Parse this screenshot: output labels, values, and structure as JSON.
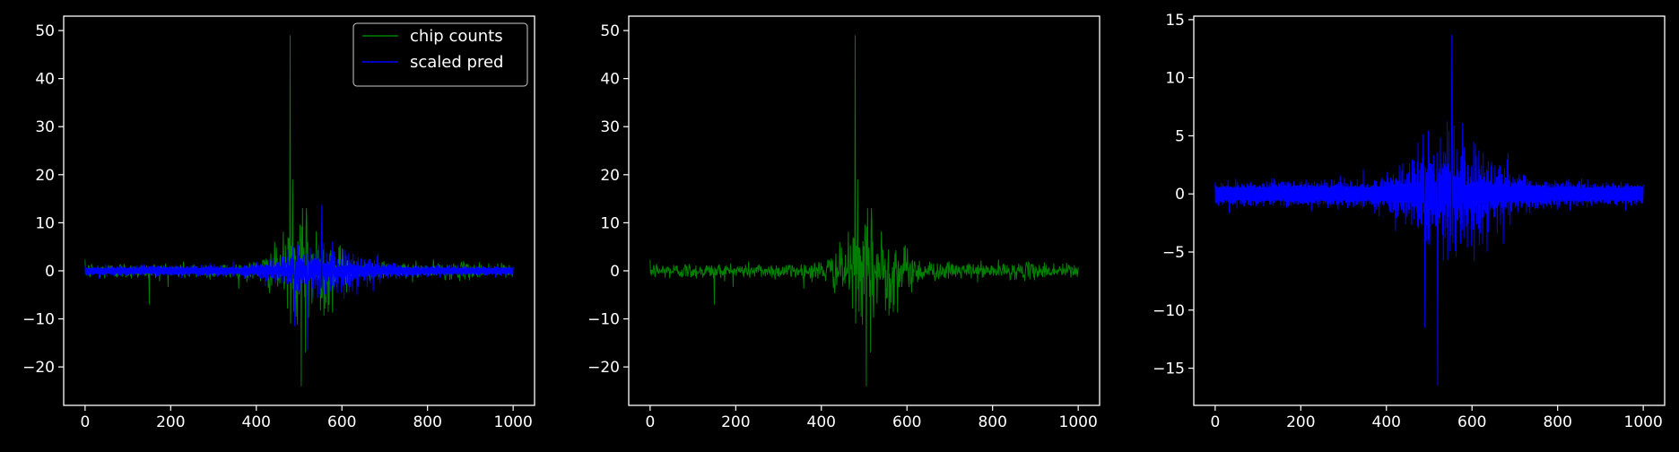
{
  "figure": {
    "background": "#000000",
    "foreground": "#ffffff"
  },
  "chart_data": [
    {
      "type": "line",
      "title": "",
      "xlabel": "",
      "ylabel": "",
      "xlim": [
        -50,
        1050
      ],
      "ylim": [
        -28,
        53
      ],
      "xticks": [
        0,
        200,
        400,
        600,
        800,
        1000
      ],
      "yticks": [
        -20,
        -10,
        0,
        10,
        20,
        30,
        40,
        50
      ],
      "grid": false,
      "legend": {
        "placement": "top-right",
        "entries": [
          {
            "label": "chip counts",
            "color": "#008000"
          },
          {
            "label": "scaled pred",
            "color": "#0000ff"
          }
        ]
      },
      "series": [
        {
          "name": "chip counts",
          "color": "#008000",
          "n_points": 1001,
          "x_range": [
            0,
            1000
          ],
          "pattern": "alternating-sign counts, envelope peaks near x=480-520",
          "notable_points": [
            {
              "x": 479,
              "y": 49
            },
            {
              "x": 485,
              "y": 19
            },
            {
              "x": 505,
              "y": -24
            },
            {
              "x": 515,
              "y": -17
            },
            {
              "x": 150,
              "y": -7
            }
          ],
          "typical_amplitude_edges": 1.2,
          "typical_amplitude_center": 8
        },
        {
          "name": "scaled pred",
          "color": "#0000ff",
          "n_points": 1001,
          "x_range": [
            0,
            1000
          ],
          "pattern": "two bands (positive and negative) with a bulge between x=450 and x=700",
          "notable_points": [
            {
              "x": 553,
              "y": 13.7
            },
            {
              "x": 520,
              "y": -16.5
            },
            {
              "x": 490,
              "y": -11.5
            }
          ],
          "typical_amplitude_edges": 0.6,
          "typical_amplitude_center": 5
        }
      ]
    },
    {
      "type": "line",
      "title": "",
      "xlabel": "",
      "ylabel": "",
      "xlim": [
        -50,
        1050
      ],
      "ylim": [
        -28,
        53
      ],
      "xticks": [
        0,
        200,
        400,
        600,
        800,
        1000
      ],
      "yticks": [
        -20,
        -10,
        0,
        10,
        20,
        30,
        40,
        50
      ],
      "grid": false,
      "series_ref": "chip counts",
      "color": "#008000"
    },
    {
      "type": "line",
      "title": "",
      "xlabel": "",
      "ylabel": "",
      "xlim": [
        -50,
        1050
      ],
      "ylim": [
        -18.2,
        15.3
      ],
      "xticks": [
        0,
        200,
        400,
        600,
        800,
        1000
      ],
      "yticks": [
        -15,
        -10,
        -5,
        0,
        5,
        10,
        15
      ],
      "grid": false,
      "series_ref": "scaled pred",
      "color": "#0000ff"
    }
  ]
}
